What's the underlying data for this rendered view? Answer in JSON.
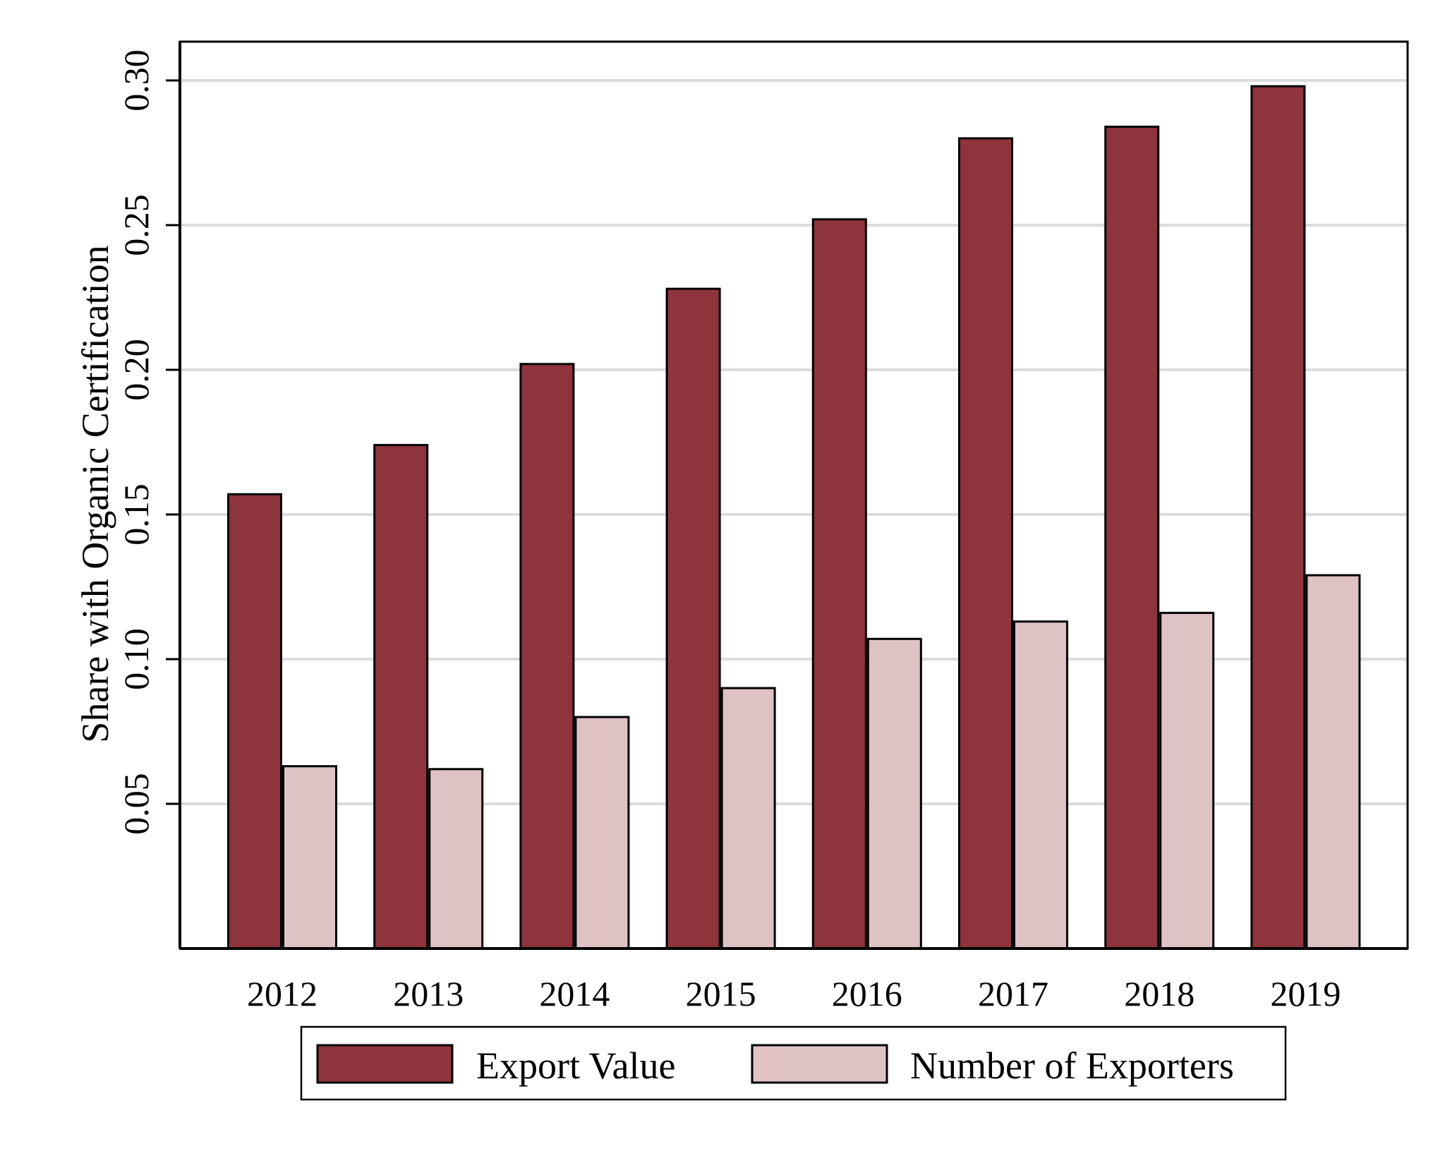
{
  "chart_data": {
    "type": "bar",
    "title": "",
    "xlabel": "",
    "ylabel": "Share with Organic Certification",
    "ylim": [
      0,
      0.32
    ],
    "yticks": [
      "0.05",
      "0.10",
      "0.15",
      "0.20",
      "0.25",
      "0.30"
    ],
    "ytick_values": [
      0.05,
      0.1,
      0.15,
      0.2,
      0.25,
      0.3
    ],
    "grid": true,
    "legend_position": "bottom",
    "categories": [
      "2012",
      "2013",
      "2014",
      "2015",
      "2016",
      "2017",
      "2018",
      "2019"
    ],
    "series": [
      {
        "name": "Export Value",
        "color": "#8E343C",
        "values": [
          0.157,
          0.174,
          0.202,
          0.228,
          0.252,
          0.28,
          0.284,
          0.298
        ]
      },
      {
        "name": "Number of Exporters",
        "color": "#DEC2C4",
        "values": [
          0.063,
          0.062,
          0.08,
          0.09,
          0.107,
          0.113,
          0.116,
          0.129
        ]
      }
    ]
  }
}
